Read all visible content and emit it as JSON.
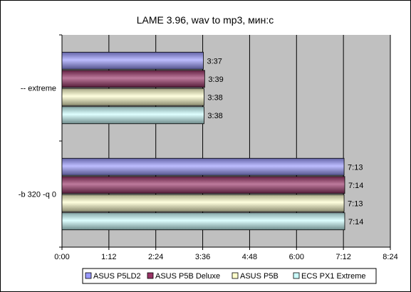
{
  "chart_data": {
    "type": "bar",
    "orientation": "horizontal",
    "title": "LAME 3.96, wav to mp3, мин:с",
    "categories": [
      "-- extreme",
      "-b 320 -q 0"
    ],
    "x_ticks": [
      "0:00",
      "1:12",
      "2:24",
      "3:36",
      "4:48",
      "6:00",
      "7:12",
      "8:24"
    ],
    "xlim_seconds": [
      0,
      504
    ],
    "grid": true,
    "legend_position": "bottom",
    "series": [
      {
        "name": "ASUS P5LD2",
        "color": "#9999ff",
        "values_seconds": [
          217,
          433
        ],
        "labels": [
          "3:37",
          "7:13"
        ]
      },
      {
        "name": "ASUS P5B Deluxe",
        "color": "#993366",
        "values_seconds": [
          219,
          434
        ],
        "labels": [
          "3:39",
          "7:14"
        ]
      },
      {
        "name": "ASUS P5B",
        "color": "#ffffcc",
        "values_seconds": [
          218,
          433
        ],
        "labels": [
          "3:38",
          "7:13"
        ]
      },
      {
        "name": "ECS PX1 Extreme",
        "color": "#ccffff",
        "values_seconds": [
          218,
          434
        ],
        "labels": [
          "3:38",
          "7:14"
        ]
      }
    ]
  }
}
